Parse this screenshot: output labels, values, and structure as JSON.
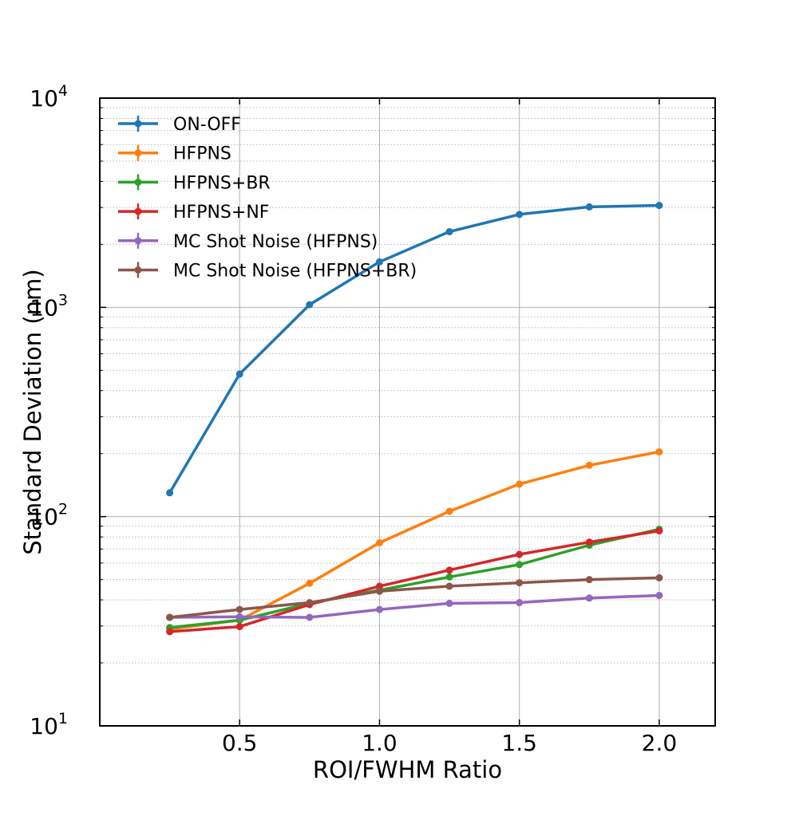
{
  "chart_data": {
    "type": "line",
    "title": "",
    "xlabel": "ROI/FWHM Ratio",
    "ylabel": "Standard Deviation (nm)",
    "yscale": "log",
    "xlim": [
      0.0,
      2.2
    ],
    "ylim": [
      10,
      10000
    ],
    "xticks": [
      "0.5",
      "1.0",
      "1.5",
      "2.0"
    ],
    "xtick_values": [
      0.5,
      1.0,
      1.5,
      2.0
    ],
    "yticks": [
      {
        "base": "10",
        "exp": "1",
        "value": 10
      },
      {
        "base": "10",
        "exp": "2",
        "value": 100
      },
      {
        "base": "10",
        "exp": "3",
        "value": 1000
      },
      {
        "base": "10",
        "exp": "4",
        "value": 10000
      }
    ],
    "grid": true,
    "legend_position": "top-left",
    "x": [
      0.25,
      0.5,
      0.75,
      1.0,
      1.25,
      1.5,
      1.75,
      2.0
    ],
    "series": [
      {
        "name": "ON-OFF",
        "color": "#1f77b4",
        "values": [
          130,
          480,
          1030,
          1650,
          2300,
          2780,
          3020,
          3070
        ]
      },
      {
        "name": "HFPNS",
        "color": "#ff7f0e",
        "values": [
          29,
          32,
          48,
          75,
          106,
          143,
          176,
          204
        ]
      },
      {
        "name": "HFPNS+BR",
        "color": "#2ca02c",
        "values": [
          29.5,
          32,
          38.5,
          44.5,
          51.5,
          59,
          73,
          87
        ]
      },
      {
        "name": "HFPNS+NF",
        "color": "#d62728",
        "values": [
          28.2,
          29.8,
          38,
          46.5,
          55.5,
          66,
          75.5,
          85.5
        ]
      },
      {
        "name": "MC Shot Noise (HFPNS)",
        "color": "#9467bd",
        "values": [
          33,
          33.2,
          33,
          36,
          38.5,
          38.8,
          40.8,
          42
        ]
      },
      {
        "name": "MC Shot Noise (HFPNS+BR)",
        "color": "#8c564b",
        "values": [
          33,
          36,
          38.8,
          44,
          46.5,
          48.3,
          50,
          51
        ]
      }
    ]
  }
}
